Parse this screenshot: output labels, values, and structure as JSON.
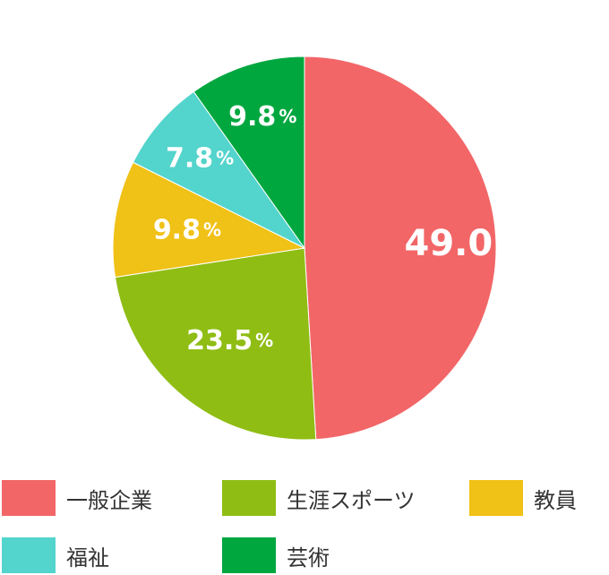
{
  "chart_data": {
    "type": "pie",
    "start": "top",
    "direction": "clockwise",
    "slices": [
      {
        "name": "一般企業",
        "value": 49.0,
        "label": "49.0",
        "color": "#F26667"
      },
      {
        "name": "生涯スポーツ",
        "value": 23.5,
        "label": "23.5",
        "color": "#8FBD14"
      },
      {
        "name": "教員",
        "value": 9.8,
        "label": "9.8",
        "color": "#F0C116"
      },
      {
        "name": "福祉",
        "value": 7.8,
        "label": "7.8",
        "color": "#53D4CC"
      },
      {
        "name": "芸術",
        "value": 9.8,
        "label": "9.8",
        "color": "#00A73F"
      }
    ],
    "unit": "%"
  }
}
